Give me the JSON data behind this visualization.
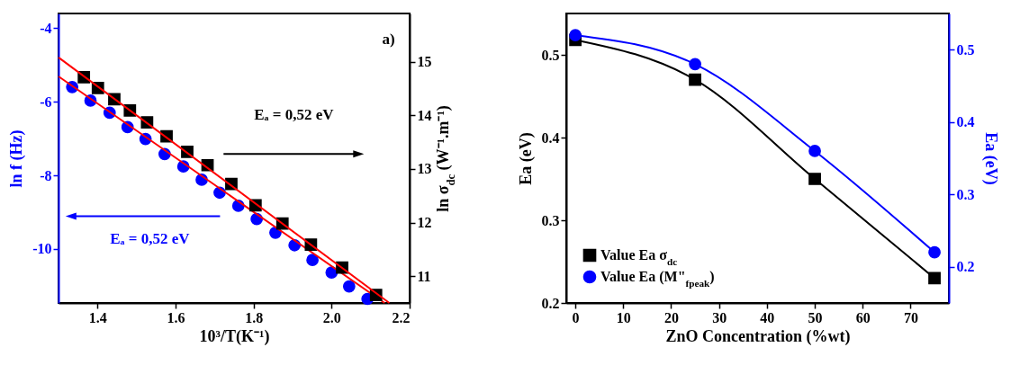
{
  "chart_data": [
    {
      "type": "scatter",
      "xlabel": "10³/T(K⁻¹)",
      "ylabel": "ln f (Hz)",
      "y2label": "ln σ$_{dc}$ (W⁻¹.m⁻¹)",
      "xlim": [
        1.3,
        2.2
      ],
      "xticks": [
        1.4,
        1.6,
        1.8,
        {
          "value": 2,
          "label": "2.0"
        },
        2.2
      ],
      "ylim": [
        -11.47,
        -3.6
      ],
      "yticks": [
        -4,
        -6,
        -8,
        -10
      ],
      "y2lim": [
        10.5,
        15.9
      ],
      "y2ticks": [
        11,
        12,
        13,
        14,
        15
      ],
      "grid": false,
      "legend": false,
      "annotations": [
        "a)",
        "Eₐ = 0,52 eV",
        "Eₐ = 0,52 eV"
      ],
      "series": [
        {
          "type": "scatter",
          "marker": "circle",
          "color": "#0000ff",
          "x": [
            1.335,
            1.382,
            1.431,
            1.477,
            1.523,
            1.572,
            1.62,
            1.667,
            1.713,
            1.761,
            1.808,
            1.856,
            1.905,
            1.951,
            2.0,
            2.045,
            2.092
          ],
          "values": [
            -5.6,
            -5.97,
            -6.3,
            -6.69,
            -7.01,
            -7.42,
            -7.76,
            -8.12,
            -8.47,
            -8.83,
            -9.19,
            -9.56,
            -9.9,
            -10.3,
            -10.64,
            -11.02,
            -11.36
          ]
        },
        {
          "type": "line",
          "color": "#ff0000",
          "x": [
            1.3,
            2.136
          ],
          "values": [
            -5.31,
            -11.47
          ]
        },
        {
          "type": "scatter",
          "marker": "square",
          "color": "#000000",
          "axis": "y2",
          "x": [
            1.365,
            1.401,
            1.443,
            1.483,
            1.527,
            1.577,
            1.63,
            1.682,
            1.743,
            1.805,
            1.874,
            1.947,
            2.027,
            2.114
          ],
          "values": [
            14.71,
            14.51,
            14.3,
            14.09,
            13.87,
            13.61,
            13.32,
            13.07,
            12.72,
            12.32,
            11.98,
            11.59,
            11.16,
            10.65
          ]
        },
        {
          "type": "line",
          "color": "#ff0000",
          "axis": "y2",
          "x": [
            1.3,
            2.148
          ],
          "values": [
            15.08,
            10.5
          ]
        }
      ]
    },
    {
      "type": "line",
      "xlabel": "ZnO Concentration (%wt)",
      "ylabel": "Ea (eV)",
      "y2label": "Ea (eV)",
      "x": [
        0,
        25,
        50,
        75
      ],
      "xlim": [
        -1.9,
        78
      ],
      "xticks": [
        0,
        10,
        20,
        30,
        40,
        50,
        60,
        70
      ],
      "ylim": [
        0.2,
        0.55
      ],
      "yticks": [
        0.2,
        0.3,
        0.4,
        0.5
      ],
      "y2lim": [
        0.15,
        0.55
      ],
      "y2ticks": [
        0.2,
        0.3,
        0.4,
        0.5
      ],
      "grid": false,
      "legend": "bottom left",
      "series": [
        {
          "name": "Value Ea σ$_{dc}$",
          "marker": "square",
          "color": "#000000",
          "values": [
            0.518,
            0.47,
            0.35,
            0.23
          ]
        },
        {
          "name": "Value Ea (M\"$_{fpeak}$)",
          "marker": "circle",
          "color": "#0000ff",
          "axis": "y2",
          "values": [
            0.52,
            0.48,
            0.36,
            0.22
          ]
        }
      ]
    }
  ]
}
